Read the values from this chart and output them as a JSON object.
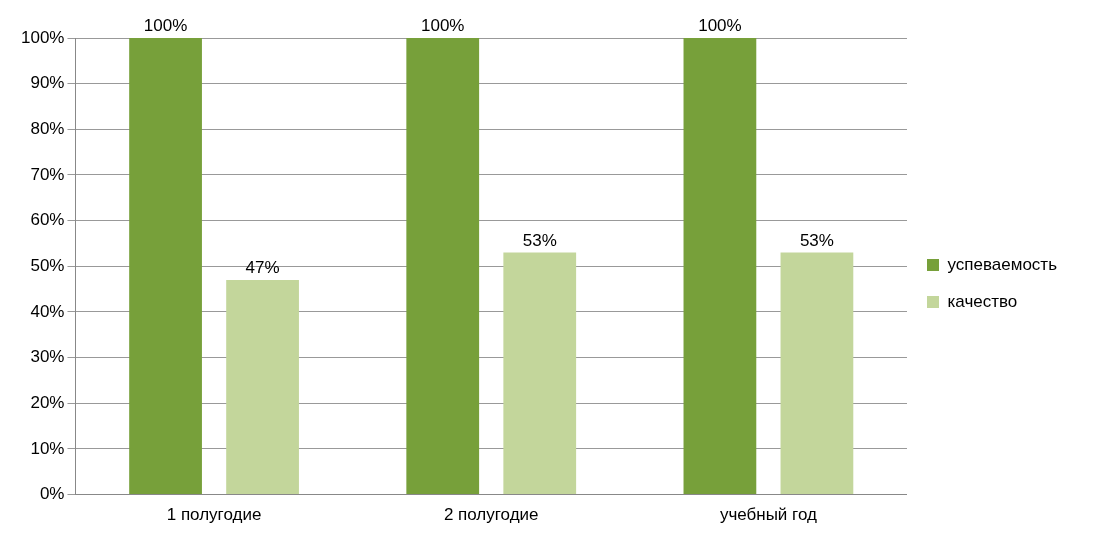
{
  "chart_data": {
    "type": "bar",
    "categories": [
      "1 полугодие",
      "2 полугодие",
      "учебный год"
    ],
    "series": [
      {
        "name": "успеваемость",
        "color": "#77a03a",
        "values": [
          100,
          100,
          100
        ],
        "value_labels": [
          "100%",
          "100%",
          "100%"
        ]
      },
      {
        "name": "качество",
        "color": "#c3d69b",
        "values": [
          47,
          53,
          53
        ],
        "value_labels": [
          "47%",
          "53%",
          "53%"
        ]
      }
    ],
    "ylim": [
      0,
      100
    ],
    "yticks": [
      {
        "value": 0,
        "label": "0%"
      },
      {
        "value": 10,
        "label": "10%"
      },
      {
        "value": 20,
        "label": "20%"
      },
      {
        "value": 30,
        "label": "30%"
      },
      {
        "value": 40,
        "label": "40%"
      },
      {
        "value": 50,
        "label": "50%"
      },
      {
        "value": 60,
        "label": "60%"
      },
      {
        "value": 70,
        "label": "70%"
      },
      {
        "value": 80,
        "label": "80%"
      },
      {
        "value": 90,
        "label": "90%"
      },
      {
        "value": 100,
        "label": "100%"
      }
    ],
    "grid": "y",
    "legend": "right"
  }
}
